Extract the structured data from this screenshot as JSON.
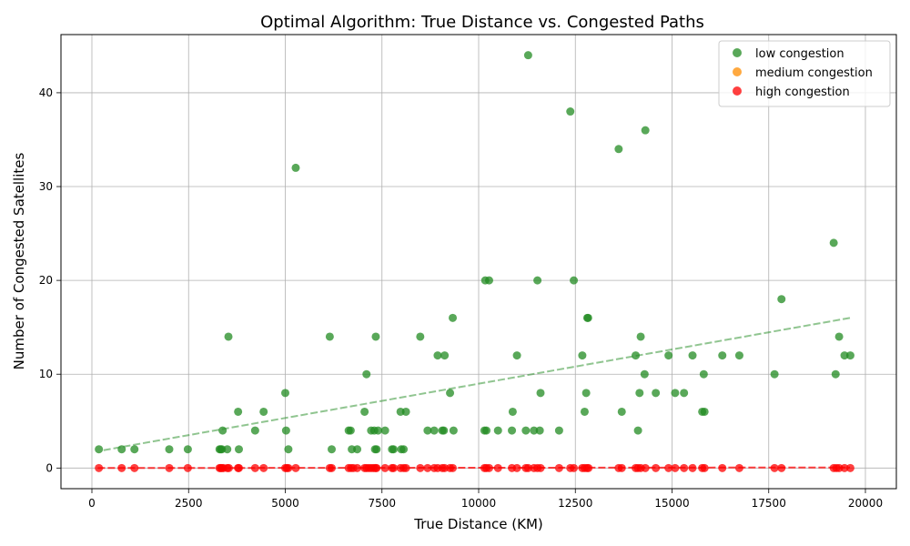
{
  "chart_data": {
    "type": "scatter",
    "title": "Optimal Algorithm: True Distance vs. Congested Paths",
    "xlabel": "True Distance (KM)",
    "ylabel": "Number of Congested Satellites",
    "xlim": [
      -800,
      20800
    ],
    "ylim": [
      -2.2,
      46.2
    ],
    "xticks": [
      0,
      2500,
      5000,
      7500,
      10000,
      12500,
      15000,
      17500,
      20000
    ],
    "yticks": [
      0,
      10,
      20,
      30,
      40
    ],
    "grid": true,
    "legend_position": "top-right",
    "series": [
      {
        "name": "low congestion",
        "color": "#228b22",
        "trendline": {
          "x": [
            300,
            19600
          ],
          "y": [
            1.9,
            16.0
          ]
        },
        "points": [
          [
            180,
            2
          ],
          [
            770,
            2
          ],
          [
            1100,
            2
          ],
          [
            2000,
            2
          ],
          [
            2480,
            2
          ],
          [
            3300,
            2
          ],
          [
            3330,
            2
          ],
          [
            3360,
            2
          ],
          [
            3380,
            4
          ],
          [
            3500,
            2
          ],
          [
            3530,
            14
          ],
          [
            3780,
            6
          ],
          [
            3800,
            2
          ],
          [
            4220,
            4
          ],
          [
            4440,
            6
          ],
          [
            5000,
            8
          ],
          [
            5020,
            4
          ],
          [
            5080,
            2
          ],
          [
            5270,
            32
          ],
          [
            6150,
            14
          ],
          [
            6200,
            2
          ],
          [
            6640,
            4
          ],
          [
            6690,
            4
          ],
          [
            6720,
            2
          ],
          [
            6860,
            2
          ],
          [
            7050,
            6
          ],
          [
            7100,
            10
          ],
          [
            7220,
            4
          ],
          [
            7300,
            4
          ],
          [
            7320,
            2
          ],
          [
            7340,
            14
          ],
          [
            7360,
            2
          ],
          [
            7400,
            4
          ],
          [
            7580,
            4
          ],
          [
            7760,
            2
          ],
          [
            7800,
            2
          ],
          [
            7980,
            6
          ],
          [
            8000,
            2
          ],
          [
            8060,
            2
          ],
          [
            8120,
            6
          ],
          [
            8490,
            14
          ],
          [
            8680,
            4
          ],
          [
            8850,
            4
          ],
          [
            8940,
            12
          ],
          [
            9060,
            4
          ],
          [
            9100,
            4
          ],
          [
            9120,
            12
          ],
          [
            9260,
            8
          ],
          [
            9330,
            16
          ],
          [
            9350,
            4
          ],
          [
            10150,
            4
          ],
          [
            10170,
            20
          ],
          [
            10200,
            4
          ],
          [
            10270,
            20
          ],
          [
            10500,
            4
          ],
          [
            10860,
            4
          ],
          [
            10880,
            6
          ],
          [
            10990,
            12
          ],
          [
            11220,
            4
          ],
          [
            11280,
            44
          ],
          [
            11430,
            4
          ],
          [
            11520,
            20
          ],
          [
            11580,
            4
          ],
          [
            11600,
            8
          ],
          [
            12080,
            4
          ],
          [
            12370,
            38
          ],
          [
            12460,
            20
          ],
          [
            12680,
            12
          ],
          [
            12740,
            6
          ],
          [
            12780,
            8
          ],
          [
            12810,
            16
          ],
          [
            12830,
            16
          ],
          [
            13620,
            34
          ],
          [
            13700,
            6
          ],
          [
            14060,
            12
          ],
          [
            14120,
            4
          ],
          [
            14160,
            8
          ],
          [
            14190,
            14
          ],
          [
            14290,
            10
          ],
          [
            14310,
            36
          ],
          [
            14580,
            8
          ],
          [
            14910,
            12
          ],
          [
            15080,
            8
          ],
          [
            15310,
            8
          ],
          [
            15530,
            12
          ],
          [
            15780,
            6
          ],
          [
            15820,
            10
          ],
          [
            15840,
            6
          ],
          [
            16300,
            12
          ],
          [
            16740,
            12
          ],
          [
            17650,
            10
          ],
          [
            17830,
            18
          ],
          [
            19180,
            24
          ],
          [
            19230,
            10
          ],
          [
            19320,
            14
          ],
          [
            19460,
            12
          ],
          [
            19610,
            12
          ]
        ]
      },
      {
        "name": "medium congestion",
        "color": "#ff8c00",
        "points": []
      },
      {
        "name": "high congestion",
        "color": "#ff0000",
        "trendline": {
          "x": [
            150,
            19600
          ],
          "y": [
            0,
            0.06
          ]
        },
        "points": [
          [
            180,
            0
          ],
          [
            770,
            0
          ],
          [
            1100,
            0
          ],
          [
            2000,
            0
          ],
          [
            2480,
            0
          ],
          [
            3300,
            0
          ],
          [
            3330,
            0
          ],
          [
            3360,
            0
          ],
          [
            3400,
            0
          ],
          [
            3500,
            0
          ],
          [
            3540,
            0
          ],
          [
            3780,
            0
          ],
          [
            3800,
            0
          ],
          [
            4220,
            0
          ],
          [
            4440,
            0
          ],
          [
            5000,
            0
          ],
          [
            5040,
            0
          ],
          [
            5080,
            0
          ],
          [
            5270,
            0
          ],
          [
            6150,
            0
          ],
          [
            6200,
            0
          ],
          [
            6640,
            0
          ],
          [
            6700,
            0
          ],
          [
            6760,
            0
          ],
          [
            6860,
            0
          ],
          [
            7050,
            0
          ],
          [
            7100,
            0
          ],
          [
            7160,
            0
          ],
          [
            7220,
            0
          ],
          [
            7280,
            0
          ],
          [
            7330,
            0
          ],
          [
            7360,
            0
          ],
          [
            7580,
            0
          ],
          [
            7760,
            0
          ],
          [
            7800,
            0
          ],
          [
            7980,
            0
          ],
          [
            8060,
            0
          ],
          [
            8120,
            0
          ],
          [
            8490,
            0
          ],
          [
            8680,
            0
          ],
          [
            8850,
            0
          ],
          [
            8940,
            0
          ],
          [
            9060,
            0
          ],
          [
            9120,
            0
          ],
          [
            9260,
            0
          ],
          [
            9330,
            0
          ],
          [
            10150,
            0
          ],
          [
            10200,
            0
          ],
          [
            10270,
            0
          ],
          [
            10500,
            0
          ],
          [
            10860,
            0
          ],
          [
            10990,
            0
          ],
          [
            11220,
            0
          ],
          [
            11280,
            0
          ],
          [
            11430,
            0
          ],
          [
            11520,
            0
          ],
          [
            11600,
            0
          ],
          [
            12080,
            0
          ],
          [
            12370,
            0
          ],
          [
            12460,
            0
          ],
          [
            12680,
            0
          ],
          [
            12740,
            0
          ],
          [
            12800,
            0
          ],
          [
            12840,
            0
          ],
          [
            13620,
            0
          ],
          [
            13700,
            0
          ],
          [
            14060,
            0
          ],
          [
            14120,
            0
          ],
          [
            14190,
            0
          ],
          [
            14310,
            0
          ],
          [
            14580,
            0
          ],
          [
            14910,
            0
          ],
          [
            15080,
            0
          ],
          [
            15310,
            0
          ],
          [
            15530,
            0
          ],
          [
            15780,
            0
          ],
          [
            15840,
            0
          ],
          [
            16300,
            0
          ],
          [
            16740,
            0
          ],
          [
            17650,
            0
          ],
          [
            17830,
            0
          ],
          [
            19180,
            0
          ],
          [
            19250,
            0
          ],
          [
            19320,
            0
          ],
          [
            19460,
            0
          ],
          [
            19610,
            0
          ]
        ]
      }
    ]
  }
}
